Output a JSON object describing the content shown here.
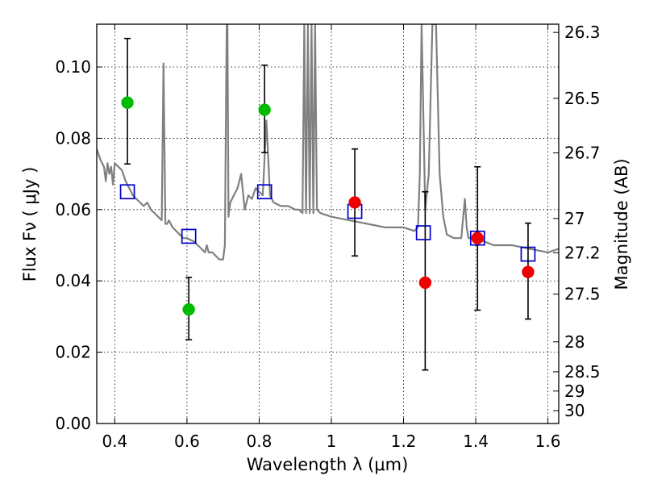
{
  "chart_data": {
    "type": "scatter",
    "xlabel": "Wavelength  λ (μm)",
    "ylabel": "Flux  Fν  ( μJy )",
    "ylabel_right": "Magnitude (AB)",
    "xlim": [
      0.35,
      1.63
    ],
    "ylim": [
      0.0,
      0.112
    ],
    "grid": true,
    "x_ticks": [
      0.4,
      0.6,
      0.8,
      1.0,
      1.2,
      1.4,
      1.6
    ],
    "x_tick_labels": [
      "0.4",
      "0.6",
      "0.8",
      "1",
      "1.2",
      "1.4",
      "1.6"
    ],
    "y_ticks": [
      0.0,
      0.02,
      0.04,
      0.06,
      0.08,
      0.1
    ],
    "y_tick_labels": [
      "0.00",
      "0.02",
      "0.04",
      "0.06",
      "0.08",
      "0.10"
    ],
    "right_ticks": [
      {
        "label": "26.3",
        "flux": 0.1097
      },
      {
        "label": "26.5",
        "flux": 0.0912
      },
      {
        "label": "26.7",
        "flux": 0.0759
      },
      {
        "label": "27",
        "flux": 0.0575
      },
      {
        "label": "27.2",
        "flux": 0.0479
      },
      {
        "label": "27.5",
        "flux": 0.0363
      },
      {
        "label": "28",
        "flux": 0.0229
      },
      {
        "label": "28.5",
        "flux": 0.0145
      },
      {
        "label": "29",
        "flux": 0.0091
      },
      {
        "label": "30",
        "flux": 0.0036
      }
    ],
    "series": [
      {
        "kind": "model_spectrum",
        "color": "#808080",
        "x": [
          0.35,
          0.36,
          0.37,
          0.375,
          0.38,
          0.385,
          0.39,
          0.395,
          0.4,
          0.41,
          0.42,
          0.43,
          0.44,
          0.45,
          0.46,
          0.47,
          0.48,
          0.49,
          0.5,
          0.51,
          0.52,
          0.53,
          0.535,
          0.54,
          0.545,
          0.55,
          0.56,
          0.57,
          0.58,
          0.59,
          0.6,
          0.62,
          0.64,
          0.65,
          0.655,
          0.66,
          0.67,
          0.68,
          0.69,
          0.7,
          0.705,
          0.71,
          0.712,
          0.715,
          0.72,
          0.73,
          0.74,
          0.75,
          0.76,
          0.77,
          0.78,
          0.79,
          0.8,
          0.81,
          0.82,
          0.83,
          0.84,
          0.86,
          0.88,
          0.9,
          0.91,
          0.92,
          0.925,
          0.93,
          0.935,
          0.94,
          0.945,
          0.95,
          0.955,
          0.96,
          0.97,
          1.0,
          1.05,
          1.1,
          1.15,
          1.2,
          1.23,
          1.24,
          1.245,
          1.25,
          1.26,
          1.27,
          1.28,
          1.285,
          1.29,
          1.3,
          1.31,
          1.32,
          1.34,
          1.36,
          1.37,
          1.375,
          1.38,
          1.4,
          1.45,
          1.5,
          1.55,
          1.6,
          1.63
        ],
        "y": [
          0.077,
          0.074,
          0.072,
          0.068,
          0.073,
          0.07,
          0.072,
          0.067,
          0.073,
          0.072,
          0.071,
          0.068,
          0.066,
          0.064,
          0.063,
          0.062,
          0.061,
          0.062,
          0.06,
          0.059,
          0.058,
          0.057,
          0.101,
          0.056,
          0.056,
          0.057,
          0.055,
          0.054,
          0.053,
          0.052,
          0.052,
          0.051,
          0.049,
          0.048,
          0.05,
          0.048,
          0.048,
          0.047,
          0.046,
          0.046,
          0.05,
          0.112,
          0.112,
          0.058,
          0.062,
          0.064,
          0.066,
          0.07,
          0.06,
          0.064,
          0.063,
          0.066,
          0.065,
          0.064,
          0.085,
          0.064,
          0.062,
          0.061,
          0.061,
          0.06,
          0.06,
          0.059,
          0.112,
          0.059,
          0.112,
          0.059,
          0.112,
          0.059,
          0.112,
          0.06,
          0.059,
          0.058,
          0.057,
          0.056,
          0.055,
          0.055,
          0.054,
          0.055,
          0.07,
          0.112,
          0.06,
          0.07,
          0.112,
          0.112,
          0.112,
          0.07,
          0.058,
          0.053,
          0.052,
          0.052,
          0.063,
          0.055,
          0.052,
          0.052,
          0.05,
          0.05,
          0.049,
          0.048,
          0.049
        ]
      },
      {
        "kind": "model_band_flux",
        "marker": "open-square",
        "color": "#0000cc",
        "x": [
          0.435,
          0.605,
          0.815,
          1.065,
          1.255,
          1.405,
          1.545
        ],
        "y": [
          0.065,
          0.0525,
          0.065,
          0.0595,
          0.0535,
          0.052,
          0.0475
        ]
      },
      {
        "kind": "observed",
        "marker": "filled-circle",
        "color": "#00bb00",
        "x": [
          0.435,
          0.605,
          0.815
        ],
        "y": [
          0.09,
          0.032,
          0.088
        ],
        "err_low": [
          0.0728,
          0.0235,
          0.076
        ],
        "err_high": [
          0.108,
          0.041,
          0.1005
        ]
      },
      {
        "kind": "observed",
        "marker": "filled-circle",
        "color": "#ee0000",
        "x": [
          1.065,
          1.26,
          1.405,
          1.545
        ],
        "y": [
          0.062,
          0.0395,
          0.052,
          0.0425
        ],
        "err_low": [
          0.047,
          0.015,
          0.0318,
          0.0293
        ],
        "err_high": [
          0.077,
          0.065,
          0.072,
          0.0562
        ]
      }
    ]
  }
}
